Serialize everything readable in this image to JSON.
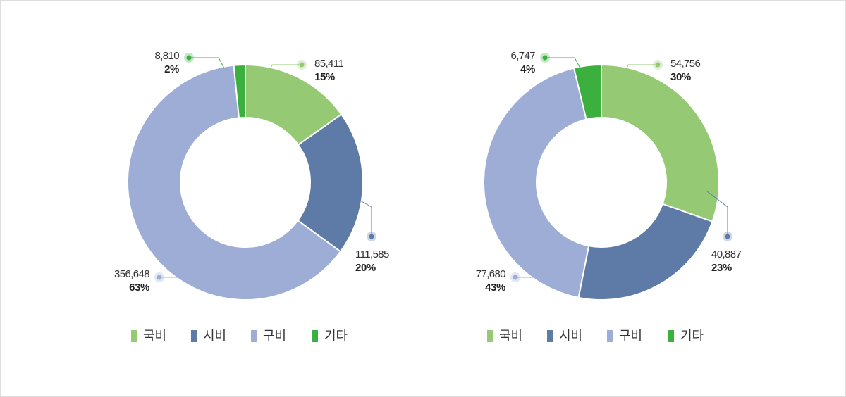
{
  "chart_data": [
    {
      "type": "pie",
      "categories": [
        "국비",
        "시비",
        "구비",
        "기타"
      ],
      "values": [
        85411,
        111585,
        356648,
        8810
      ],
      "value_labels": [
        "85,411",
        "111,585",
        "356,648",
        "8,810"
      ],
      "percent_labels": [
        "15%",
        "20%",
        "63%",
        "2%"
      ],
      "colors": [
        "#96c974",
        "#5e7ba7",
        "#9dadd6",
        "#3bb03e"
      ],
      "legend": [
        "국비",
        "시비",
        "구비",
        "기타"
      ],
      "legend_position": "bottom"
    },
    {
      "type": "pie",
      "categories": [
        "국비",
        "시비",
        "구비",
        "기타"
      ],
      "values": [
        54756,
        40887,
        77680,
        6747
      ],
      "value_labels": [
        "54,756",
        "40,887",
        "77,680",
        "6,747"
      ],
      "percent_labels": [
        "30%",
        "23%",
        "43%",
        "4%"
      ],
      "colors": [
        "#96c974",
        "#5e7ba7",
        "#9dadd6",
        "#3bb03e"
      ],
      "legend": [
        "국비",
        "시비",
        "구비",
        "기타"
      ],
      "legend_position": "bottom"
    }
  ]
}
